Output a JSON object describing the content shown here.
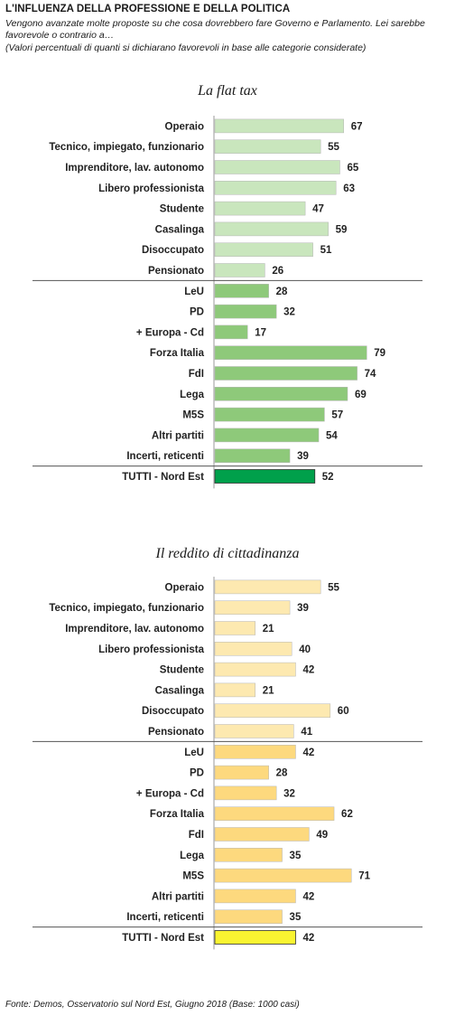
{
  "header": {
    "title": "L'INFLUENZA DELLA PROFESSIONE E DELLA POLITICA",
    "subtitle": "Vengono avanzate molte proposte su che cosa dovrebbero fare Governo e Parlamento. Lei sarebbe favorevole o contrario a…",
    "note": "(Valori percentuali di quanti si dichiarano favorevoli in base alle categorie considerate)"
  },
  "footer": {
    "source": "Fonte: Demos, Osservatorio sul Nord Est, Giugno  2018 (Base: 1000 casi)"
  },
  "chart_data": [
    {
      "type": "bar",
      "orientation": "horizontal",
      "title": "La flat tax",
      "categories": [
        "Operaio",
        "Tecnico, impiegato, funzionario",
        "Imprenditore, lav. autonomo",
        "Libero professionista",
        "Studente",
        "Casalinga",
        "Disoccupato",
        "Pensionato",
        "LeU",
        "PD",
        "+ Europa - Cd",
        "Forza Italia",
        "FdI",
        "Lega",
        "M5S",
        "Altri partiti",
        "Incerti, reticenti",
        "TUTTI - Nord Est"
      ],
      "values": [
        67,
        55,
        65,
        63,
        47,
        59,
        51,
        26,
        28,
        32,
        17,
        79,
        74,
        69,
        57,
        54,
        39,
        52
      ],
      "groups": [
        "Professione",
        "Professione",
        "Professione",
        "Professione",
        "Professione",
        "Professione",
        "Professione",
        "Professione",
        "Partito",
        "Partito",
        "Partito",
        "Partito",
        "Partito",
        "Partito",
        "Partito",
        "Partito",
        "Partito",
        "Totale"
      ],
      "colors": {
        "Professione": "#c9e6bd",
        "Partito": "#8ec97a",
        "Totale": "#00a04b"
      },
      "xlim": [
        0,
        100
      ],
      "grid": false,
      "data_labels": true
    },
    {
      "type": "bar",
      "orientation": "horizontal",
      "title": "Il reddito di cittadinanza",
      "categories": [
        "Operaio",
        "Tecnico, impiegato, funzionario",
        "Imprenditore, lav. autonomo",
        "Libero professionista",
        "Studente",
        "Casalinga",
        "Disoccupato",
        "Pensionato",
        "LeU",
        "PD",
        "+ Europa - Cd",
        "Forza Italia",
        "FdI",
        "Lega",
        "M5S",
        "Altri partiti",
        "Incerti, reticenti",
        "TUTTI - Nord Est"
      ],
      "values": [
        55,
        39,
        21,
        40,
        42,
        21,
        60,
        41,
        42,
        28,
        32,
        62,
        49,
        35,
        71,
        42,
        35,
        42
      ],
      "groups": [
        "Professione",
        "Professione",
        "Professione",
        "Professione",
        "Professione",
        "Professione",
        "Professione",
        "Professione",
        "Partito",
        "Partito",
        "Partito",
        "Partito",
        "Partito",
        "Partito",
        "Partito",
        "Partito",
        "Partito",
        "Totale"
      ],
      "colors": {
        "Professione": "#fde9b0",
        "Partito": "#fdd97e",
        "Totale": "#f9f431"
      },
      "xlim": [
        0,
        100
      ],
      "grid": false,
      "data_labels": true
    }
  ]
}
